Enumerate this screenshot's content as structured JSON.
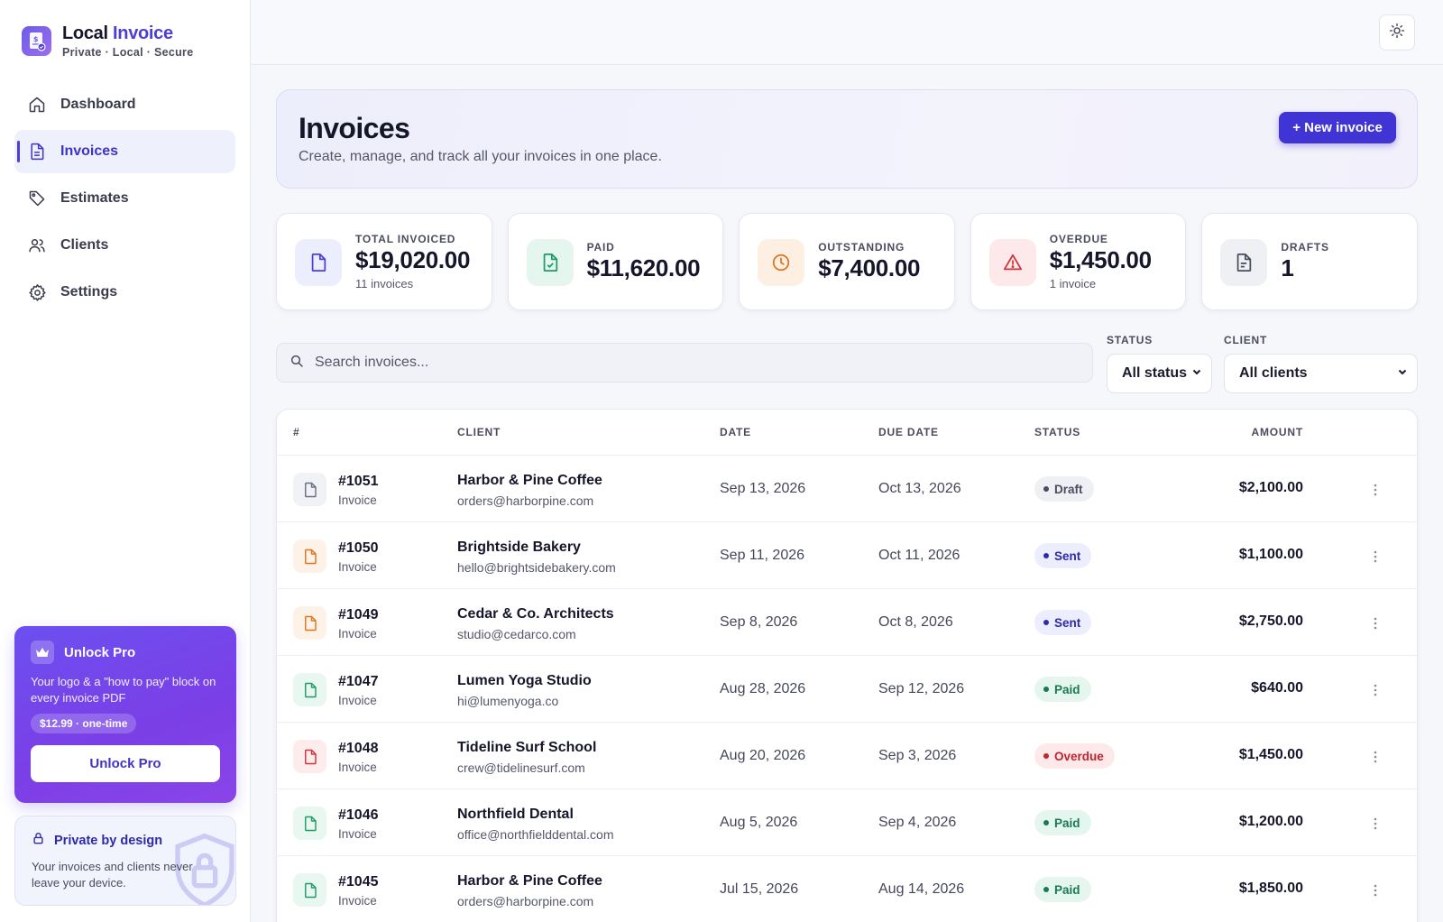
{
  "brand": {
    "title_main": "Local",
    "title_accent": "Invoice",
    "subtitle": "Private · Local · Secure"
  },
  "nav": [
    {
      "label": "Dashboard",
      "icon": "home-icon",
      "active": false
    },
    {
      "label": "Invoices",
      "icon": "file-text-icon",
      "active": true
    },
    {
      "label": "Estimates",
      "icon": "tag-icon",
      "active": false
    },
    {
      "label": "Clients",
      "icon": "users-icon",
      "active": false
    },
    {
      "label": "Settings",
      "icon": "gear-icon",
      "active": false
    }
  ],
  "pro": {
    "title": "Unlock Pro",
    "description": "Your logo & a \"how to pay\" block on every invoice PDF",
    "price": "$12.99 · one-time",
    "button": "Unlock Pro"
  },
  "privacy": {
    "title": "Private by design",
    "description": "Your invoices and clients never leave your device."
  },
  "hero": {
    "title": "Invoices",
    "subtitle": "Create, manage, and track all your invoices in one place.",
    "new_button": "+ New invoice"
  },
  "stats": [
    {
      "label": "TOTAL INVOICED",
      "value": "$19,020.00",
      "sub": "11 invoices",
      "icon": "file-icon",
      "color": "#4b3fd6",
      "bg": "#eceefd"
    },
    {
      "label": "PAID",
      "value": "$11,620.00",
      "sub": "",
      "icon": "file-check-icon",
      "color": "#1f9a6a",
      "bg": "#e4f6ee"
    },
    {
      "label": "OUTSTANDING",
      "value": "$7,400.00",
      "sub": "",
      "icon": "clock-icon",
      "color": "#e0731f",
      "bg": "#fdf0e3"
    },
    {
      "label": "OVERDUE",
      "value": "$1,450.00",
      "sub": "1 invoice",
      "icon": "alert-triangle-icon",
      "color": "#d2323b",
      "bg": "#fde9ea"
    },
    {
      "label": "DRAFTS",
      "value": "1",
      "sub": "",
      "icon": "file-lines-icon",
      "color": "#4a4c5e",
      "bg": "#eef0f4"
    }
  ],
  "search": {
    "placeholder": "Search invoices..."
  },
  "filters": {
    "status": {
      "label": "STATUS",
      "value": "All status"
    },
    "client": {
      "label": "CLIENT",
      "value": "All clients"
    }
  },
  "table": {
    "headers": {
      "num": "#",
      "client": "CLIENT",
      "date": "DATE",
      "due": "DUE DATE",
      "status": "STATUS",
      "amount": "AMOUNT"
    },
    "rows": [
      {
        "num": "#1051",
        "kind": "Invoice",
        "client": "Harbor & Pine Coffee",
        "email": "orders@harborpine.com",
        "date": "Sep 13, 2026",
        "due": "Oct 13, 2026",
        "status": "Draft",
        "amount": "$2,100.00"
      },
      {
        "num": "#1050",
        "kind": "Invoice",
        "client": "Brightside Bakery",
        "email": "hello@brightsidebakery.com",
        "date": "Sep 11, 2026",
        "due": "Oct 11, 2026",
        "status": "Sent",
        "amount": "$1,100.00"
      },
      {
        "num": "#1049",
        "kind": "Invoice",
        "client": "Cedar & Co. Architects",
        "email": "studio@cedarco.com",
        "date": "Sep 8, 2026",
        "due": "Oct 8, 2026",
        "status": "Sent",
        "amount": "$2,750.00"
      },
      {
        "num": "#1047",
        "kind": "Invoice",
        "client": "Lumen Yoga Studio",
        "email": "hi@lumenyoga.co",
        "date": "Aug 28, 2026",
        "due": "Sep 12, 2026",
        "status": "Paid",
        "amount": "$640.00"
      },
      {
        "num": "#1048",
        "kind": "Invoice",
        "client": "Tideline Surf School",
        "email": "crew@tidelinesurf.com",
        "date": "Aug 20, 2026",
        "due": "Sep 3, 2026",
        "status": "Overdue",
        "amount": "$1,450.00"
      },
      {
        "num": "#1046",
        "kind": "Invoice",
        "client": "Northfield Dental",
        "email": "office@northfielddental.com",
        "date": "Aug 5, 2026",
        "due": "Sep 4, 2026",
        "status": "Paid",
        "amount": "$1,200.00"
      },
      {
        "num": "#1045",
        "kind": "Invoice",
        "client": "Harbor & Pine Coffee",
        "email": "orders@harborpine.com",
        "date": "Jul 15, 2026",
        "due": "Aug 14, 2026",
        "status": "Paid",
        "amount": "$1,850.00"
      }
    ]
  },
  "status_colors": {
    "Draft": {
      "fg": "#4a4c5e",
      "bg": "#eef0f4",
      "doc": "#6b6e80",
      "docbg": "#f1f2f6"
    },
    "Sent": {
      "fg": "#2e2aa8",
      "bg": "#eceefd",
      "doc": "#e0731f",
      "docbg": "#fdf2e7"
    },
    "Paid": {
      "fg": "#177a52",
      "bg": "#e4f6ee",
      "doc": "#1f9a6a",
      "docbg": "#e8f7f0"
    },
    "Overdue": {
      "fg": "#c0242d",
      "bg": "#fde9ea",
      "doc": "#d2323b",
      "docbg": "#fdecec"
    }
  }
}
